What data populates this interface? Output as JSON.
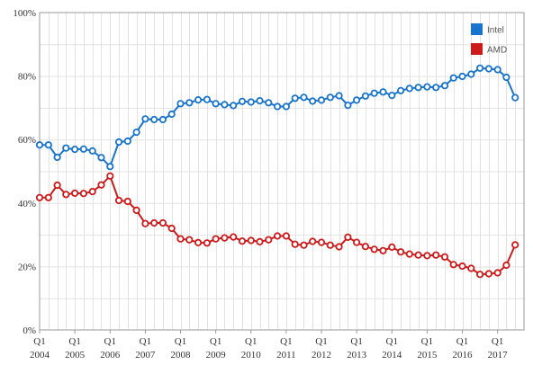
{
  "chart_data": {
    "type": "line",
    "title": "",
    "xlabel": "",
    "ylabel": "",
    "ylim": [
      0,
      100
    ],
    "y_ticks": [
      0,
      20,
      40,
      60,
      80,
      100
    ],
    "y_tick_labels": [
      "0%",
      "20%",
      "40%",
      "60%",
      "80%",
      "100%"
    ],
    "x_range": [
      2004,
      2017.75
    ],
    "x_tick_labels": [
      {
        "quarter": "Q1",
        "year": "2004"
      },
      {
        "quarter": "Q1",
        "year": "2005"
      },
      {
        "quarter": "Q1",
        "year": "2006"
      },
      {
        "quarter": "Q1",
        "year": "2007"
      },
      {
        "quarter": "Q1",
        "year": "2008"
      },
      {
        "quarter": "Q1",
        "year": "2009"
      },
      {
        "quarter": "Q1",
        "year": "2010"
      },
      {
        "quarter": "Q1",
        "year": "2011"
      },
      {
        "quarter": "Q1",
        "year": "2012"
      },
      {
        "quarter": "Q1",
        "year": "2013"
      },
      {
        "quarter": "Q1",
        "year": "2014"
      },
      {
        "quarter": "Q1",
        "year": "2015"
      },
      {
        "quarter": "Q1",
        "year": "2016"
      },
      {
        "quarter": "Q1",
        "year": "2017"
      }
    ],
    "grid": true,
    "legend_position": "top-right",
    "series": [
      {
        "name": "Intel",
        "color": "#1874cd",
        "values": [
          58.3,
          58.3,
          54.4,
          57.3,
          56.9,
          57.0,
          56.4,
          54.3,
          51.5,
          59.2,
          59.5,
          62.3,
          66.5,
          66.3,
          66.3,
          68.0,
          71.3,
          71.6,
          72.5,
          72.6,
          71.3,
          71.0,
          70.7,
          72.0,
          71.8,
          72.2,
          71.6,
          70.4,
          70.4,
          73.0,
          73.3,
          72.1,
          72.4,
          73.3,
          73.8,
          70.8,
          72.4,
          73.7,
          74.6,
          75.0,
          73.9,
          75.4,
          76.1,
          76.4,
          76.6,
          76.4,
          77.0,
          79.4,
          79.9,
          80.6,
          82.5,
          82.3,
          82.0,
          79.6,
          73.2
        ]
      },
      {
        "name": "AMD",
        "color": "#cd1a1a",
        "values": [
          41.7,
          41.7,
          45.6,
          42.7,
          43.1,
          43.0,
          43.6,
          45.7,
          48.5,
          40.8,
          40.5,
          37.7,
          33.5,
          33.7,
          33.7,
          32.0,
          28.7,
          28.4,
          27.5,
          27.4,
          28.7,
          29.0,
          29.3,
          28.0,
          28.2,
          27.8,
          28.4,
          29.6,
          29.6,
          27.0,
          26.7,
          27.9,
          27.6,
          26.7,
          26.2,
          29.2,
          27.6,
          26.3,
          25.4,
          25.0,
          26.1,
          24.6,
          23.9,
          23.6,
          23.4,
          23.6,
          23.0,
          20.6,
          20.1,
          19.4,
          17.5,
          17.7,
          18.0,
          20.4,
          26.8
        ]
      }
    ]
  }
}
